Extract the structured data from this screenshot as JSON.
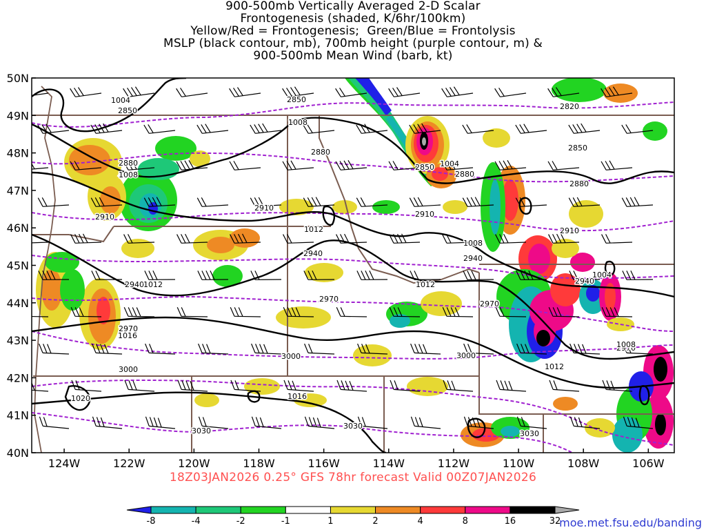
{
  "title": {
    "lines": [
      "900-500mb Vertically Averaged 2-D Scalar",
      "Frontogenesis (shaded, K/6hr/100km)",
      "Yellow/Red = Frontogenesis;  Green/Blue = Frontolysis",
      "MSLP (black contour, mb), 700mb height (purple contour, m) &",
      "900-500mb Mean Wind (barb, kt)"
    ]
  },
  "map": {
    "lat_labels": [
      "50N",
      "49N",
      "48N",
      "47N",
      "46N",
      "45N",
      "44N",
      "43N",
      "42N",
      "41N",
      "40N"
    ],
    "lon_labels": [
      "124W",
      "122W",
      "120W",
      "118W",
      "116W",
      "114W",
      "112W",
      "110W",
      "108W",
      "106W"
    ],
    "height_labels": [
      {
        "text": "2850"
      },
      {
        "text": "2850"
      },
      {
        "text": "2820"
      },
      {
        "text": "2880"
      },
      {
        "text": "2880"
      },
      {
        "text": "2850"
      },
      {
        "text": "2850"
      },
      {
        "text": "2880"
      },
      {
        "text": "2880"
      },
      {
        "text": "2910"
      },
      {
        "text": "2910"
      },
      {
        "text": "2910"
      },
      {
        "text": "2910"
      },
      {
        "text": "2940"
      },
      {
        "text": "2940"
      },
      {
        "text": "2940"
      },
      {
        "text": "2940"
      },
      {
        "text": "2970"
      },
      {
        "text": "2970"
      },
      {
        "text": "2970"
      },
      {
        "text": "2970"
      },
      {
        "text": "3000"
      },
      {
        "text": "3000"
      },
      {
        "text": "3000"
      },
      {
        "text": "3030"
      },
      {
        "text": "3030"
      },
      {
        "text": "3030"
      }
    ],
    "pressure_labels": [
      {
        "text": "1004"
      },
      {
        "text": "1008"
      },
      {
        "text": "1008"
      },
      {
        "text": "1004"
      },
      {
        "text": "1012"
      },
      {
        "text": "1008"
      },
      {
        "text": "1012"
      },
      {
        "text": "1012"
      },
      {
        "text": "1004"
      },
      {
        "text": "1016"
      },
      {
        "text": "1008"
      },
      {
        "text": "1012"
      },
      {
        "text": "1016"
      },
      {
        "text": "1020"
      }
    ]
  },
  "footer": {
    "run_text": "18Z03JAN2026 0.25° GFS 78hr forecast Valid 00Z07JAN2026",
    "website": "moe.met.fsu.edu/banding"
  },
  "colorbar": {
    "labels": [
      "-8",
      "-4",
      "-2",
      "-1",
      "1",
      "2",
      "4",
      "8",
      "16",
      "32"
    ],
    "colors": [
      "#2020e8",
      "#14b4b0",
      "#1ec878",
      "#22d422",
      "#ffffff",
      "#e6d832",
      "#ee8a24",
      "#ff3a3a",
      "#ee0a88",
      "#000000",
      "#aaaaaa"
    ]
  },
  "colors": {
    "height_contour": "#a020d0",
    "pressure_contour": "#000000",
    "borders": "#7a5c50"
  }
}
